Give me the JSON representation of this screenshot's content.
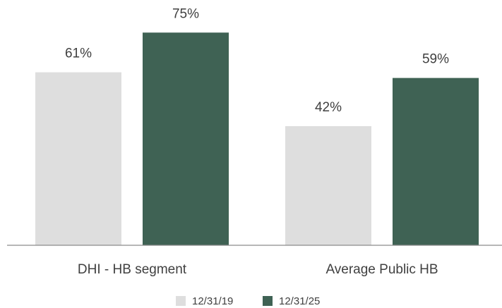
{
  "chart_data": {
    "type": "bar",
    "categories": [
      "DHI - HB segment",
      "Average Public HB"
    ],
    "series": [
      {
        "name": "12/31/19",
        "color": "#dedede",
        "values": [
          61,
          42
        ],
        "value_labels": [
          "61%",
          "42%"
        ]
      },
      {
        "name": "12/31/25",
        "color": "#3f6254",
        "values": [
          75,
          59
        ],
        "value_labels": [
          "75%",
          "59%"
        ]
      }
    ],
    "ylim": [
      0,
      85
    ]
  }
}
